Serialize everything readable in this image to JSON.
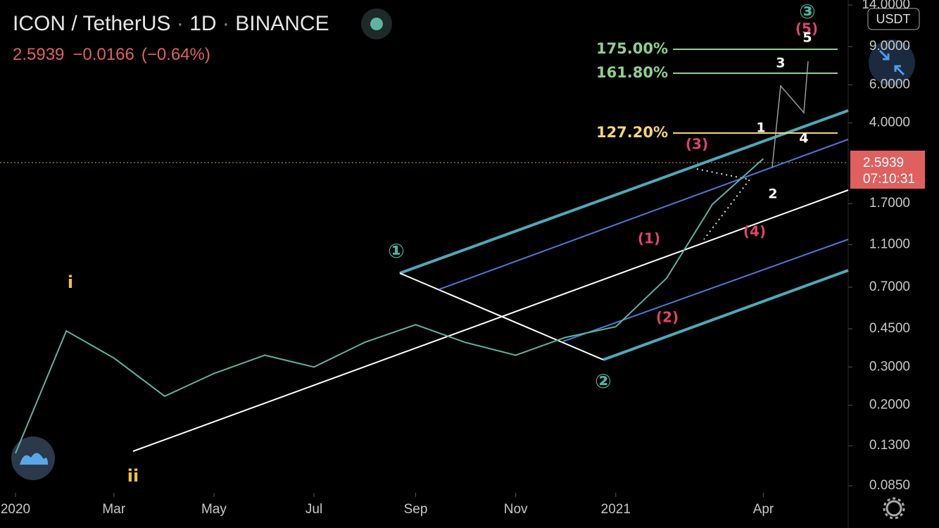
{
  "header": {
    "symbol": "ICON / TetherUS",
    "interval": "1D",
    "exchange": "BINANCE",
    "price": "2.5939",
    "change": "−0.0166",
    "change_pct": "(−0.64%)",
    "currency": "USDT",
    "last_price_label": "2.5939",
    "countdown": "07:10:31"
  },
  "chart_data": {
    "type": "line",
    "log_scale": true,
    "grid": false,
    "x": [
      "2020-01",
      "2020-02",
      "2020-03",
      "2020-04",
      "2020-05",
      "2020-06",
      "2020-07",
      "2020-08",
      "2020-09",
      "2020-10",
      "2020-11",
      "2020-12",
      "2021-01",
      "2021-02",
      "2021-03",
      "2021-04"
    ],
    "series": [
      {
        "name": "ICON / TetherUS",
        "color": "#5fb3a0",
        "values": [
          0.12,
          0.44,
          0.33,
          0.22,
          0.28,
          0.34,
          0.3,
          0.39,
          0.47,
          0.39,
          0.34,
          0.41,
          0.46,
          0.77,
          1.69,
          2.74
        ]
      }
    ],
    "xticks": [
      {
        "value": "2020-01",
        "label": "2020"
      },
      {
        "value": "2020-03",
        "label": "Mar"
      },
      {
        "value": "2020-05",
        "label": "May"
      },
      {
        "value": "2020-07",
        "label": "Jul"
      },
      {
        "value": "2020-09",
        "label": "Sep"
      },
      {
        "value": "2020-11",
        "label": "Nov"
      },
      {
        "value": "2021-01",
        "label": "2021"
      },
      {
        "value": "2021-04",
        "label": "Apr"
      }
    ],
    "ylim": [
      0.0789,
      14.76
    ],
    "yticks": [
      {
        "value": 0.085,
        "label": "0.0850"
      },
      {
        "value": 0.13,
        "label": "0.1300"
      },
      {
        "value": 0.2,
        "label": "0.2000"
      },
      {
        "value": 0.3,
        "label": "0.3000"
      },
      {
        "value": 0.45,
        "label": "0.4500"
      },
      {
        "value": 0.7,
        "label": "0.7000"
      },
      {
        "value": 1.1,
        "label": "1.1000"
      },
      {
        "value": 1.7,
        "label": "1.7000"
      },
      {
        "value": 4,
        "label": "4.0000"
      },
      {
        "value": 6,
        "label": "6.0000"
      },
      {
        "value": 9,
        "label": "9.0000"
      },
      {
        "value": 14,
        "label": "14.0000"
      }
    ],
    "annotations": [
      "i",
      "ii",
      "①",
      "②",
      "③",
      "(1)",
      "(2)",
      "(3)",
      "(4)",
      "(5)",
      "1",
      "2",
      "3",
      "4",
      "5",
      "175.00%",
      "161.80%",
      "127.20%"
    ]
  }
}
